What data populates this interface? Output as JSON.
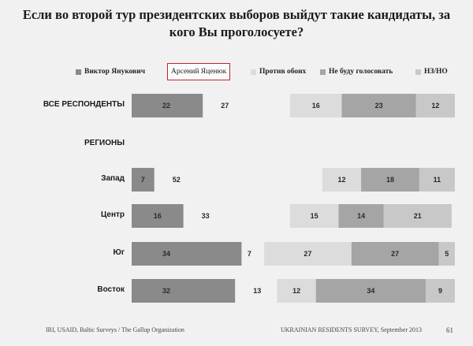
{
  "title": "Если во второй тур президентских выборов выйдут такие кандидаты, за кого Вы проголосуете?",
  "legend": [
    {
      "label": "Виктор Янукович",
      "color": "#8a8a8a",
      "highlighted": false
    },
    {
      "label": "Арсений Яценюк",
      "color": "#ffffff",
      "highlighted": true
    },
    {
      "label": "Против обоих",
      "color": "#dcdcdc",
      "highlighted": false
    },
    {
      "label": "Не буду голосовать",
      "color": "#a5a5a5",
      "highlighted": false
    },
    {
      "label": "НЗ/НО",
      "color": "#c8c8c8",
      "highlighted": false
    }
  ],
  "chart_data": {
    "type": "bar",
    "orientation": "horizontal",
    "stacked": true,
    "categories": [
      "ВСЕ РЕСПОНДЕНТЫ",
      "РЕГИОНЫ",
      "Запад",
      "Центр",
      "Юг",
      "Восток"
    ],
    "series": [
      {
        "name": "Виктор Янукович",
        "values": [
          22,
          null,
          7,
          16,
          34,
          32
        ]
      },
      {
        "name": "Арсений Яценюк",
        "values": [
          27,
          null,
          52,
          33,
          7,
          13
        ]
      },
      {
        "name": "Против обоих",
        "values": [
          16,
          null,
          12,
          15,
          27,
          12
        ]
      },
      {
        "name": "Не буду голосовать",
        "values": [
          23,
          null,
          18,
          14,
          27,
          34
        ]
      },
      {
        "name": "НЗ/НО",
        "values": [
          12,
          null,
          11,
          21,
          5,
          9
        ]
      }
    ],
    "xlim": [
      0,
      100
    ],
    "legend_position": "top",
    "grid": false
  },
  "footer": {
    "left": "IRI, USAID, Baltic Surveys / The Gallup Organization",
    "right": "UKRAINIAN RESIDENTS SURVEY, September 2013",
    "page": "61"
  }
}
